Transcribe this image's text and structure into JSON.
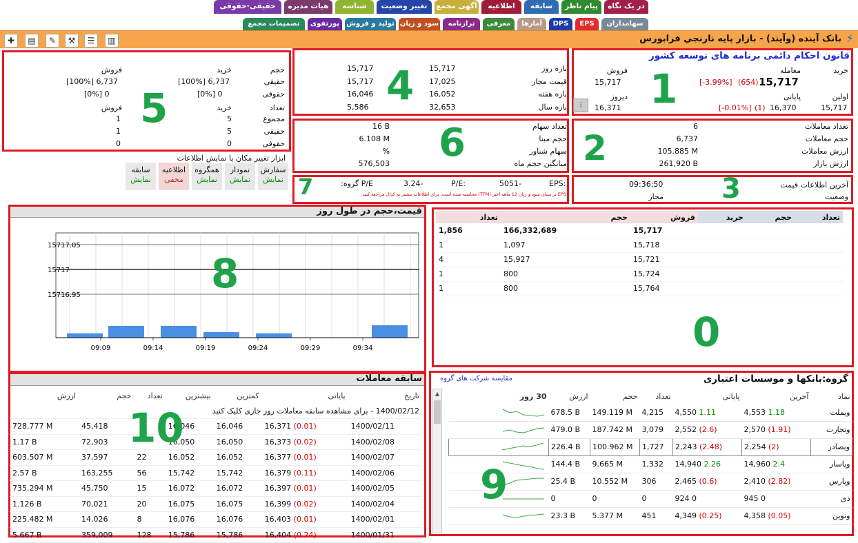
{
  "tabs_row1": [
    {
      "label": "در یک نگاه",
      "color": "#a0204a"
    },
    {
      "label": "پیام ناظر",
      "color": "#2e8b2e"
    },
    {
      "label": "سابقه",
      "color": "#2f6db3"
    },
    {
      "label": "اطلاعیه",
      "color": "#a01d3a"
    },
    {
      "label": "آگهی مجمع",
      "color": "#c7b03a"
    },
    {
      "label": "تغییر وضعیت",
      "color": "#2546a8"
    },
    {
      "label": "شناسه",
      "color": "#8fb52e"
    },
    {
      "label": "هیات مدیره",
      "color": "#7a3a6a"
    },
    {
      "label": "حقیقی-حقوقی",
      "color": "#7a3aa8"
    }
  ],
  "tabs_row2": [
    {
      "label": "سهامداران",
      "color": "#7a8a96"
    },
    {
      "label": "EPS",
      "color": "#e02c2c"
    },
    {
      "label": "DPS",
      "color": "#1f3aa8"
    },
    {
      "label": "آمارها",
      "color": "#b89a8a"
    },
    {
      "label": "معرفی",
      "color": "#3c8a3c"
    },
    {
      "label": "ترازنامه",
      "color": "#8a2a8a"
    },
    {
      "label": "سود و زیان",
      "color": "#c05020"
    },
    {
      "label": "تولید و فروش",
      "color": "#2a7aa0"
    },
    {
      "label": "پورتفوی",
      "color": "#6a2aa0"
    },
    {
      "label": "تصمیمات مجمع",
      "color": "#2a8a5a"
    }
  ],
  "header_title": "بانک آينده (وآيند) - بازار پايه نارنجي فرابورس",
  "numbers": {
    "n1": "1",
    "n2": "2",
    "n3": "3",
    "n4": "4",
    "n5": "5",
    "n6": "6",
    "n7": "7",
    "n8": "8",
    "n0": "0",
    "n9": "9",
    "n10": "10"
  },
  "box1": {
    "law": "قانون احکام دائمی برنامه های توسعه کشور",
    "lbl_buy": "خرید",
    "lbl_trade": "معامله",
    "lbl_sell": "فروش",
    "buy": "",
    "trade_pct": "[-3.99%]",
    "trade_chg": "(654)",
    "trade": "15,717",
    "sell": "15,717",
    "lbl_first": "اولین",
    "lbl_close": "پایانی",
    "lbl_yday": "دیروز",
    "first": "15,717",
    "close_pct": "[-0.01%]",
    "close_chg": "(1)",
    "close": "16,370",
    "yday": "16,371"
  },
  "box2": {
    "rows": [
      {
        "label": "تعداد معاملات",
        "value": "6"
      },
      {
        "label": "حجم معاملات",
        "value": "6,737"
      },
      {
        "label": "ارزش معاملات",
        "value": "105.885 M"
      },
      {
        "label": "ارزش بازار",
        "value": "261,920 B"
      }
    ]
  },
  "box3": {
    "lbl_last": "آخرین اطلاعات قیمت",
    "last_time": "09:36:50",
    "lbl_status": "وضعیت",
    "status": "مجاز"
  },
  "box4": {
    "rows": [
      {
        "label": "بازه روز",
        "a": "15,717",
        "b": "15,717"
      },
      {
        "label": "قیمت مجاز",
        "a": "17,025",
        "b": "15,717"
      },
      {
        "label": "بازه هفته",
        "a": "16,052",
        "b": "16,046"
      },
      {
        "label": "بازه سال",
        "a": "32,653",
        "b": "5,586"
      }
    ]
  },
  "box5": {
    "h_vol": "حجم",
    "h_buy": "خرید",
    "h_sell": "فروش",
    "r1_label": "حقیقی",
    "r1_buy": "[100%] 6,737",
    "r1_sell": "[100%] 6,737",
    "r2_label": "حقوقی",
    "r2_buy": "[0%] 0",
    "r2_sell": "[0%] 0",
    "h_count": "تعداد",
    "h_buy2": "خرید",
    "h_sell2": "فروش",
    "c1_label": "مجموع",
    "c1_buy": "5",
    "c1_sell": "1",
    "c2_label": "حقیقی",
    "c2_buy": "5",
    "c2_sell": "1",
    "c3_label": "حقوقی",
    "c3_buy": "0",
    "c3_sell": "0"
  },
  "box6": {
    "rows": [
      {
        "label": "تعداد سهام",
        "value": "16 B"
      },
      {
        "label": "حجم مبنا",
        "value": "6.108 M"
      },
      {
        "label": "سهام شناور",
        "value": "%"
      },
      {
        "label": "میانگین حجم ماه",
        "value": "576,503"
      }
    ]
  },
  "box7": {
    "eps": "EPS:",
    "eps_val": "5051-",
    "pe": "P/E:",
    "pe_val": "3.24-",
    "gpe": "P/E گروه:",
    "note": "EPS بر مبنای سود و زیان 12 ماهه اخیر (TTM) محاسبه شده است. برای اطلاعات بیشتر به کدال مراجعه کنید."
  },
  "toggle_title": "ابزار تغییر مکان یا نمایش اطلاعات",
  "toggles": [
    {
      "name": "سفارش",
      "state": "نمایش"
    },
    {
      "name": "نمودار",
      "state": "نمایش"
    },
    {
      "name": "همگروه",
      "state": "نمایش"
    },
    {
      "name": "اطلاعیه",
      "state": "مخفی"
    },
    {
      "name": "سابقه",
      "state": "نمایش"
    }
  ],
  "chart_title": "قیمت،حجم در طول روز",
  "chart_data": {
    "type": "bar",
    "x": [
      "09:09",
      "09:14",
      "09:19",
      "09:24",
      "09:29",
      "09:34"
    ],
    "price_ticks": [
      "15717.05",
      "15717",
      "15716.95"
    ],
    "price_line": 15717,
    "volume_rel": [
      0.35,
      0.95,
      0.95,
      0.45,
      0.35,
      0,
      0,
      1
    ]
  },
  "orderbook": {
    "headers": [
      "تعداد",
      "حجم",
      "خرید",
      "فروش",
      "حجم",
      "تعداد"
    ],
    "rows": [
      {
        "sell": "15,717",
        "vol": "166,332,689",
        "cnt": "1,856"
      },
      {
        "sell": "15,718",
        "vol": "1,097",
        "cnt": "1"
      },
      {
        "sell": "15,721",
        "vol": "15,927",
        "cnt": "4"
      },
      {
        "sell": "15,724",
        "vol": "800",
        "cnt": "1"
      },
      {
        "sell": "15,764",
        "vol": "800",
        "cnt": "1"
      }
    ]
  },
  "history": {
    "title": "سابقه معاملات",
    "headers": [
      "تاریخ",
      "پایانی",
      "کمترین",
      "بیشترین",
      "تعداد",
      "حجم",
      "ارزش"
    ],
    "note": "1400/02/12 - برای مشاهده سابقه معاملات روز جاری کلیک کنید",
    "rows": [
      {
        "d": "1400/02/11",
        "c": "16,371",
        "ch": "(0.01)",
        "lo": "16,046",
        "hi": "16,046",
        "n": "",
        "v": "45,418",
        "val": "728.777 M"
      },
      {
        "d": "1400/02/08",
        "c": "16,373",
        "ch": "(0.02)",
        "lo": "16,050",
        "hi": "16,050",
        "n": "",
        "v": "72,903",
        "val": "1.17 B"
      },
      {
        "d": "1400/02/07",
        "c": "16,377",
        "ch": "(0.01)",
        "lo": "16,052",
        "hi": "16,052",
        "n": "22",
        "v": "37,597",
        "val": "603.507 M"
      },
      {
        "d": "1400/02/06",
        "c": "16,379",
        "ch": "(0.11)",
        "lo": "15,742",
        "hi": "15,742",
        "n": "56",
        "v": "163,255",
        "val": "2.57 B"
      },
      {
        "d": "1400/02/05",
        "c": "16,397",
        "ch": "(0.01)",
        "lo": "16,072",
        "hi": "16,072",
        "n": "15",
        "v": "45,750",
        "val": "735.294 M"
      },
      {
        "d": "1400/02/04",
        "c": "16,399",
        "ch": "(0.02)",
        "lo": "16,075",
        "hi": "16,075",
        "n": "20",
        "v": "70,021",
        "val": "1.126 B"
      },
      {
        "d": "1400/02/01",
        "c": "16,403",
        "ch": "(0.01)",
        "lo": "16,076",
        "hi": "16,076",
        "n": "8",
        "v": "14,026",
        "val": "225.482 M"
      },
      {
        "d": "1400/01/31",
        "c": "16,404",
        "ch": "(0.24)",
        "lo": "15,786",
        "hi": "15,786",
        "n": "128",
        "v": "359,009",
        "val": "5.667 B"
      }
    ]
  },
  "group": {
    "title": "گروه:بانکها و موسسات اعتباری",
    "compare": "مقایسه شرکت های گروه",
    "headers": [
      "نماد",
      "آخرین",
      "پایانی",
      "تعداد",
      "حجم",
      "ارزش",
      "30 روز"
    ],
    "rows": [
      {
        "sym": "وبملت",
        "last": "4,553",
        "lchg": "1.18",
        "lcls": "grn",
        "close": "4,550",
        "cchg": "1.11",
        "ccls": "grn",
        "n": "4,215",
        "v": "149.119 M",
        "val": "678.5 B"
      },
      {
        "sym": "وتجارت",
        "last": "2,570",
        "lchg": "(1.91)",
        "lcls": "red",
        "close": "2,552",
        "cchg": "(2.6)",
        "ccls": "red",
        "n": "3,079",
        "v": "187.742 M",
        "val": "479.0 B"
      },
      {
        "sym": "وبصادر",
        "last": "2,254",
        "lchg": "(2)",
        "lcls": "red",
        "close": "2,243",
        "cchg": "(2.48)",
        "ccls": "red",
        "n": "1,727",
        "v": "100.962 M",
        "val": "226.4 B"
      },
      {
        "sym": "وپاسار",
        "last": "14,960",
        "lchg": "2.4",
        "lcls": "grn",
        "close": "14,940",
        "cchg": "2.26",
        "ccls": "grn",
        "n": "1,332",
        "v": "9.665 M",
        "val": "144.4 B"
      },
      {
        "sym": "وپارس",
        "last": "2,410",
        "lchg": "(2.82)",
        "lcls": "red",
        "close": "2,465",
        "cchg": "(0.6)",
        "ccls": "red",
        "n": "306",
        "v": "10.552 M",
        "val": "25.4 B"
      },
      {
        "sym": "دی",
        "last": "945",
        "lchg": "0",
        "lcls": "",
        "close": "924",
        "cchg": "0",
        "ccls": "",
        "n": "0",
        "v": "0",
        "val": "0"
      },
      {
        "sym": "ونوین",
        "last": "4,358",
        "lchg": "(0.05)",
        "lcls": "red",
        "close": "4,349",
        "cchg": "(0.25)",
        "ccls": "red",
        "n": "451",
        "v": "5.377 M",
        "val": "23.3 B"
      }
    ]
  }
}
